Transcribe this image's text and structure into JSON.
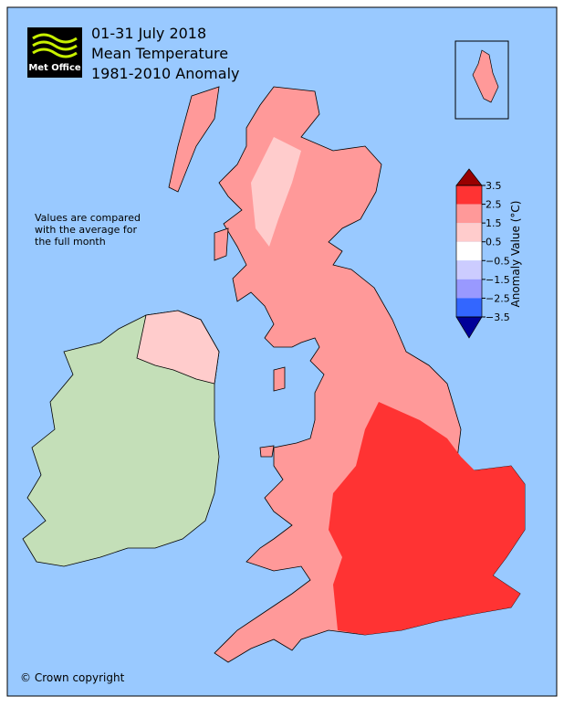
{
  "header": {
    "title_lines": [
      "01-31 July 2018",
      "Mean Temperature",
      "1981-2010 Anomaly"
    ],
    "logo": "Met Office"
  },
  "note_lines": [
    "Values are compared",
    "with the average for",
    "the full month"
  ],
  "copyright": "© Crown copyright",
  "colorbar": {
    "label": "Anomaly Value (°C)",
    "ticks": [
      3.5,
      2.5,
      1.5,
      0.5,
      {
        "value": -0.5,
        "label": "−0.5"
      },
      {
        "value": -1.5,
        "label": "−1.5"
      },
      {
        "value": -2.5,
        "label": "−2.5"
      },
      {
        "value": -3.5,
        "label": "−3.5"
      }
    ],
    "colors": [
      "#ff3333",
      "#ff9999",
      "#ffcccc",
      "#ffffff",
      "#ccccff",
      "#9999ff",
      "#3366ff"
    ],
    "extend_colors": [
      "#990000",
      "#000099"
    ]
  }
}
